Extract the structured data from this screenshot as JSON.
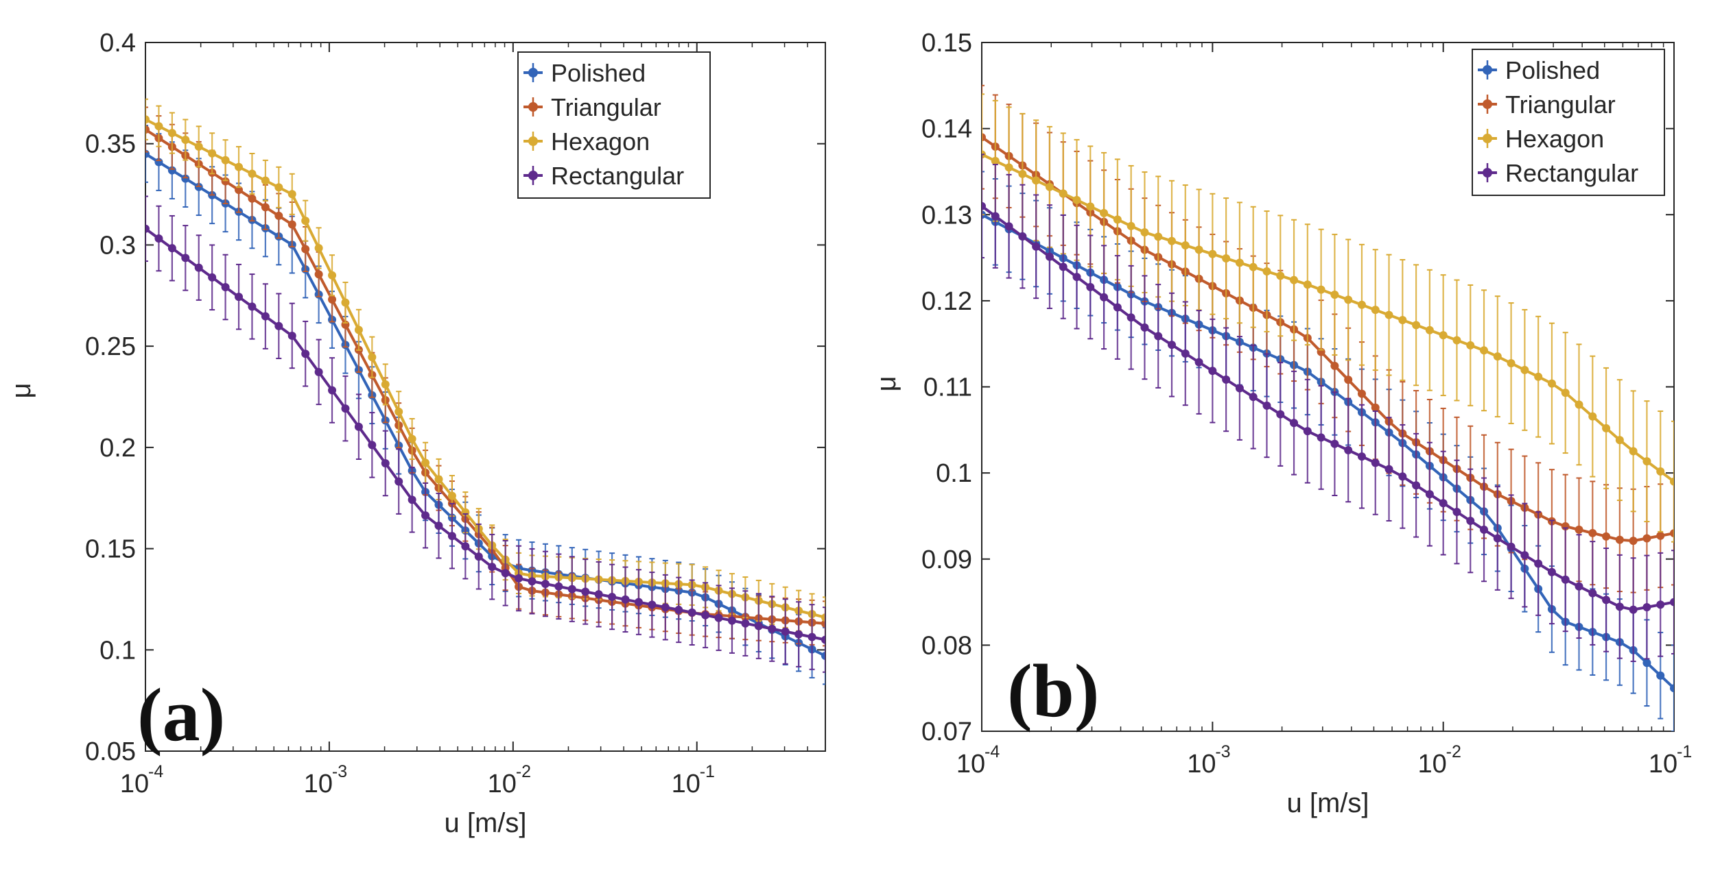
{
  "chart_data": [
    {
      "type": "line",
      "panel_label": "(a)",
      "xscale": "log",
      "xlim": [
        0.0001,
        0.5
      ],
      "ylim": [
        0.05,
        0.4
      ],
      "xlabel": "u [m/s]",
      "ylabel": "μ",
      "xticks": [
        0.0001,
        0.001,
        0.01,
        0.1
      ],
      "xtick_labels": [
        {
          "base": "10",
          "exp": "-4"
        },
        {
          "base": "10",
          "exp": "-3"
        },
        {
          "base": "10",
          "exp": "-2"
        },
        {
          "base": "10",
          "exp": "-1"
        }
      ],
      "yticks": [
        0.05,
        0.1,
        0.15,
        0.2,
        0.25,
        0.3,
        0.35,
        0.4
      ],
      "ytick_labels": [
        "0.05",
        "0.1",
        "0.15",
        "0.2",
        "0.25",
        "0.3",
        "0.35",
        "0.4"
      ],
      "legend_position": "top-right",
      "x_log10_points": [
        -4.0,
        -3.2,
        -2.5,
        -2.1,
        -1.96,
        -1.0,
        -0.3
      ],
      "series": [
        {
          "name": "Polished",
          "color": "#3264b8",
          "values": [
            0.345,
            0.3,
            0.18,
            0.145,
            0.14,
            0.128,
            0.097
          ],
          "error": 0.014
        },
        {
          "name": "Triangular",
          "color": "#c05a2c",
          "values": [
            0.357,
            0.31,
            0.19,
            0.148,
            0.13,
            0.118,
            0.113
          ],
          "error": 0.011
        },
        {
          "name": "Hexagon",
          "color": "#d9aa32",
          "values": [
            0.362,
            0.325,
            0.195,
            0.15,
            0.137,
            0.132,
            0.116
          ],
          "error": 0.01
        },
        {
          "name": "Rectangular",
          "color": "#5e2a8c",
          "values": [
            0.308,
            0.255,
            0.168,
            0.14,
            0.135,
            0.118,
            0.105
          ],
          "error": 0.016
        }
      ]
    },
    {
      "type": "line",
      "panel_label": "(b)",
      "xscale": "log",
      "xlim": [
        0.0001,
        0.1
      ],
      "ylim": [
        0.07,
        0.15
      ],
      "xlabel": "u [m/s]",
      "ylabel": "μ",
      "xticks": [
        0.0001,
        0.001,
        0.01,
        0.1
      ],
      "xtick_labels": [
        {
          "base": "10",
          "exp": "-4"
        },
        {
          "base": "10",
          "exp": "-3"
        },
        {
          "base": "10",
          "exp": "-2"
        },
        {
          "base": "10",
          "exp": "-1"
        }
      ],
      "yticks": [
        0.07,
        0.08,
        0.09,
        0.1,
        0.11,
        0.12,
        0.13,
        0.14,
        0.15
      ],
      "ytick_labels": [
        "0.07",
        "0.08",
        "0.09",
        "0.1",
        "0.11",
        "0.12",
        "0.13",
        "0.14",
        "0.15"
      ],
      "legend_position": "top-right",
      "x_log10_points": [
        -4.0,
        -3.3,
        -2.6,
        -2.2,
        -1.8,
        -1.5,
        -1.2,
        -1.0
      ],
      "series": [
        {
          "name": "Polished",
          "color": "#3264b8",
          "values": [
            0.13,
            0.12,
            0.112,
            0.104,
            0.095,
            0.083,
            0.08,
            0.075
          ],
          "error": 0.005
        },
        {
          "name": "Triangular",
          "color": "#c05a2c",
          "values": [
            0.139,
            0.126,
            0.116,
            0.105,
            0.098,
            0.094,
            0.092,
            0.093
          ],
          "error": 0.006
        },
        {
          "name": "Hexagon",
          "color": "#d9aa32",
          "values": [
            0.137,
            0.128,
            0.122,
            0.118,
            0.114,
            0.11,
            0.103,
            0.099
          ],
          "error": 0.007
        },
        {
          "name": "Rectangular",
          "color": "#5e2a8c",
          "values": [
            0.131,
            0.117,
            0.105,
            0.1,
            0.093,
            0.088,
            0.084,
            0.085
          ],
          "error": 0.006
        }
      ]
    }
  ]
}
